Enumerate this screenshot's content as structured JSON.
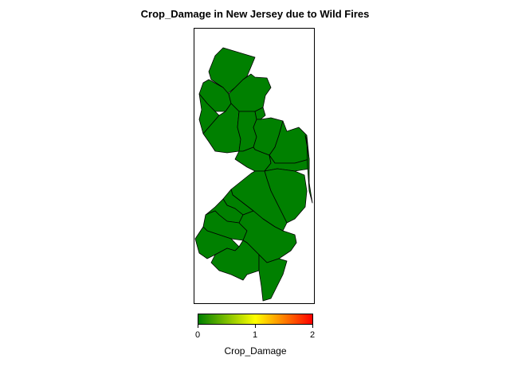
{
  "title": "Crop_Damage in New Jersey due to Wild Fires",
  "state": "New Jersey",
  "map": {
    "fill_color": "#008000",
    "outline_color": "#000000",
    "region_count": 21,
    "all_regions_value": 0
  },
  "legend": {
    "title": "Crop_Damage",
    "ticks": [
      "0",
      "1",
      "2"
    ],
    "range": [
      0,
      2
    ],
    "colors": [
      "#008000",
      "#ffff00",
      "#ff0000"
    ],
    "placement": "bottom"
  }
}
